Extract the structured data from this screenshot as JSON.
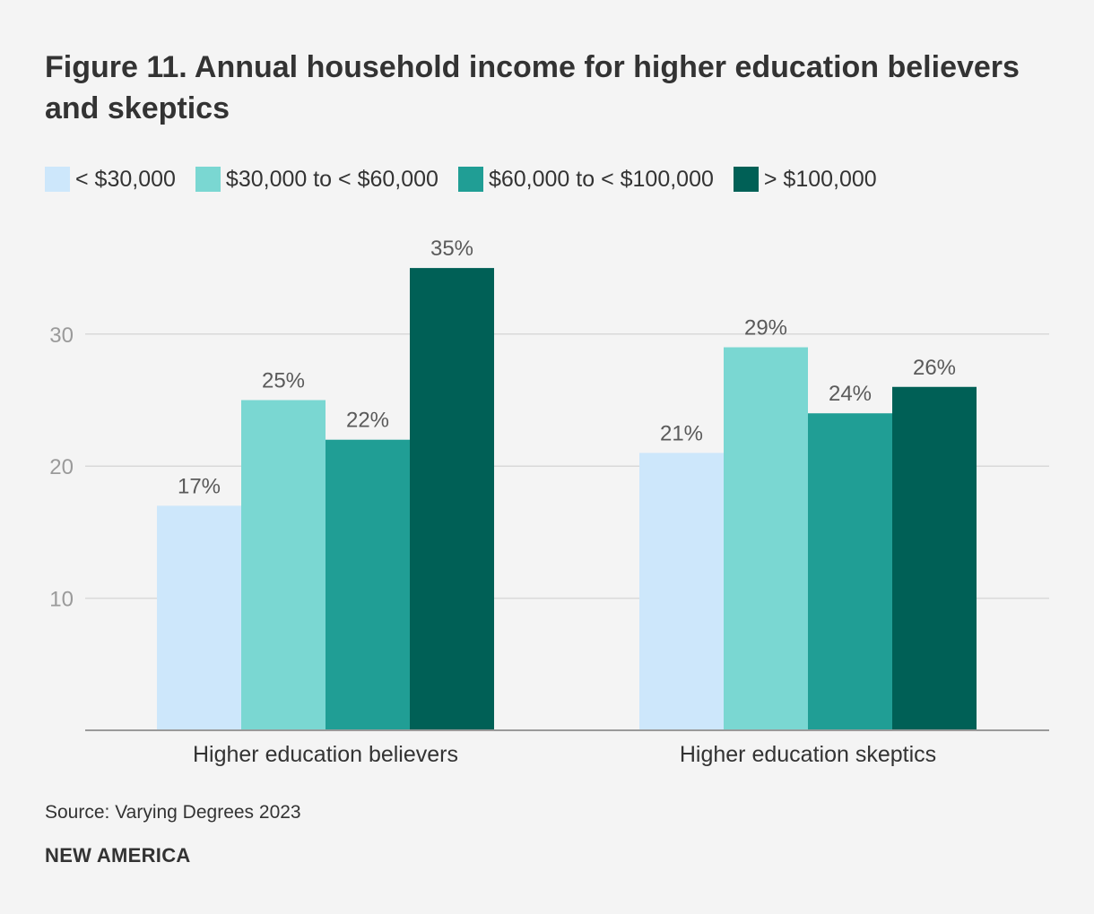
{
  "title": "Figure 11. Annual household income for higher education believers and skeptics",
  "source": "Source: Varying Degrees 2023",
  "brand": "NEW AMERICA",
  "chart_data": {
    "type": "bar",
    "title": "Figure 11. Annual household income for higher education believers and skeptics",
    "categories": [
      "Higher education believers",
      "Higher education skeptics"
    ],
    "series": [
      {
        "name": "< $30,000",
        "color": "#cde7fb",
        "values": [
          17,
          21
        ],
        "labels": [
          "17%",
          "21%"
        ]
      },
      {
        "name": "$30,000 to < $60,000",
        "color": "#7ad7d2",
        "values": [
          25,
          29
        ],
        "labels": [
          "25%",
          "29%"
        ]
      },
      {
        "name": "$60,000 to < $100,000",
        "color": "#209e95",
        "values": [
          22,
          24
        ],
        "labels": [
          "22%",
          "24%"
        ]
      },
      {
        "name": "> $100,000",
        "color": "#006056",
        "values": [
          35,
          26
        ],
        "labels": [
          "35%",
          "26%"
        ]
      }
    ],
    "yticks": [
      10,
      20,
      30
    ],
    "ytick_labels": [
      "10",
      "20",
      "30"
    ],
    "ylim": [
      0,
      38
    ],
    "xlabel": "",
    "ylabel": "",
    "grid": true,
    "legend_position": "top-left"
  }
}
